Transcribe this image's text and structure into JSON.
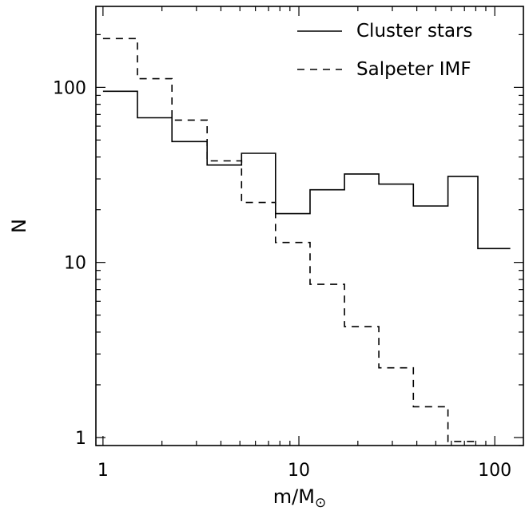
{
  "chart_data": {
    "type": "line",
    "step": true,
    "title": "",
    "xlabel": "m/M",
    "xlabel_symbol": "⊙",
    "ylabel": "N",
    "xscale": "log",
    "yscale": "log",
    "xlim": [
      0.92,
      140
    ],
    "ylim": [
      0.9,
      290
    ],
    "x_ticks": [
      1,
      10,
      100
    ],
    "x_tick_labels": [
      "1",
      "10",
      "100"
    ],
    "y_ticks": [
      1,
      10,
      100
    ],
    "y_tick_labels": [
      "1",
      "10",
      "100"
    ],
    "grid": false,
    "legend_position": "top-right",
    "bin_edges": [
      1.0,
      1.5,
      2.25,
      3.4,
      5.1,
      7.6,
      11.4,
      17.1,
      25.6,
      38.4,
      57.7,
      82,
      120
    ],
    "series": [
      {
        "name": "Cluster stars",
        "style": "solid",
        "values": [
          95,
          67,
          49,
          36,
          42,
          19,
          26,
          32,
          28,
          21,
          31,
          12
        ]
      },
      {
        "name": "Salpeter IMF",
        "style": "dashed",
        "values": [
          190,
          112,
          65,
          38,
          22,
          13,
          7.5,
          4.3,
          2.5,
          1.5,
          0.95
        ]
      }
    ]
  }
}
